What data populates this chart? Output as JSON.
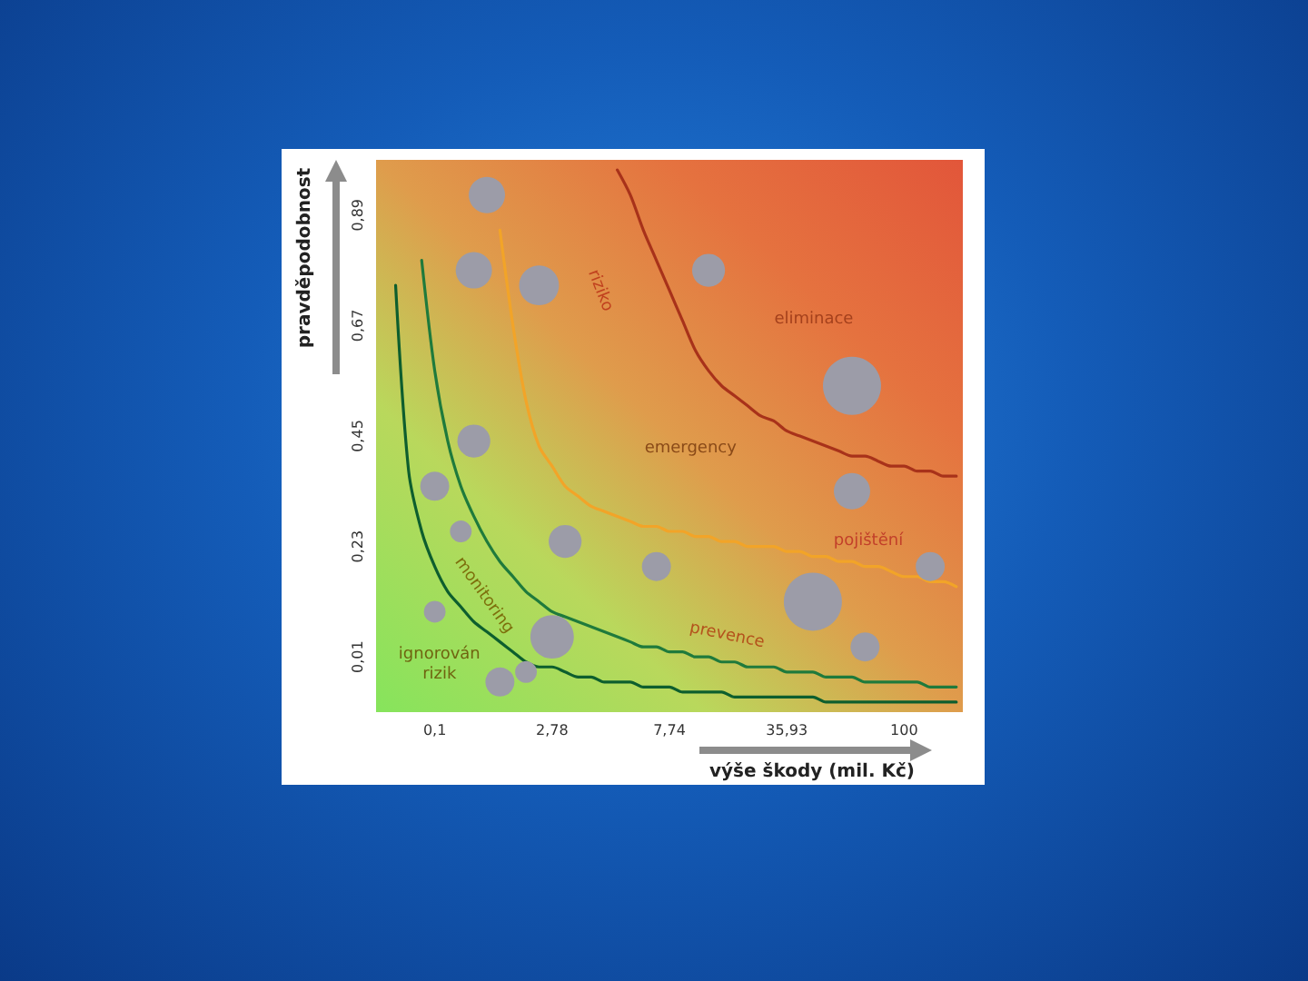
{
  "chart_data": {
    "type": "bubble",
    "xlabel": "výše škody (mil. Kč)",
    "ylabel": "pravděpodobnost",
    "categories": [
      null,
      null,
      null,
      null,
      "0,1",
      null,
      null,
      null,
      null,
      null,
      null,
      null,
      null,
      "2,78",
      null,
      null,
      null,
      null,
      null,
      null,
      null,
      null,
      "7,74",
      null,
      null,
      null,
      null,
      null,
      null,
      null,
      null,
      "35,93",
      null,
      null,
      null,
      null,
      null,
      null,
      null,
      null,
      "100",
      null,
      null,
      null,
      null
    ],
    "ylim": [
      -0.1,
      1.0
    ],
    "yticks": [
      {
        "value": 0.01,
        "label": "0,01"
      },
      {
        "value": 0.23,
        "label": "0,23"
      },
      {
        "value": 0.45,
        "label": "0,45"
      },
      {
        "value": 0.67,
        "label": "0,67"
      },
      {
        "value": 0.89,
        "label": "0,89"
      }
    ],
    "series": [
      {
        "type": "line",
        "color": "#0d5e2e",
        "marker": "none",
        "values": [
          null,
          0.75,
          0.38,
          0.26,
          0.19,
          0.14,
          0.11,
          0.08,
          0.06,
          0.04,
          0.02,
          0.0,
          -0.01,
          -0.01,
          -0.02,
          -0.03,
          -0.03,
          -0.04,
          -0.04,
          -0.04,
          -0.05,
          -0.05,
          -0.05,
          -0.06,
          -0.06,
          -0.06,
          -0.06,
          -0.07,
          -0.07,
          -0.07,
          -0.07,
          -0.07,
          -0.07,
          -0.07,
          -0.08,
          -0.08,
          -0.08,
          -0.08,
          -0.08,
          -0.08,
          -0.08,
          -0.08,
          -0.08,
          -0.08,
          -0.08
        ]
      },
      {
        "type": "line",
        "color": "#1f7a3c",
        "marker": "none",
        "values": [
          null,
          null,
          null,
          0.8,
          0.58,
          0.44,
          0.35,
          0.29,
          0.24,
          0.2,
          0.17,
          0.14,
          0.12,
          0.1,
          0.09,
          0.08,
          0.07,
          0.06,
          0.05,
          0.04,
          0.03,
          0.03,
          0.02,
          0.02,
          0.01,
          0.01,
          0.0,
          0.0,
          -0.01,
          -0.01,
          -0.01,
          -0.02,
          -0.02,
          -0.02,
          -0.03,
          -0.03,
          -0.03,
          -0.04,
          -0.04,
          -0.04,
          -0.04,
          -0.04,
          -0.05,
          -0.05,
          -0.05
        ]
      },
      {
        "type": "line",
        "color": "#f2a428",
        "marker": "none",
        "values": [
          null,
          null,
          null,
          null,
          null,
          null,
          null,
          null,
          null,
          0.86,
          0.67,
          0.52,
          0.43,
          0.39,
          0.35,
          0.33,
          0.31,
          0.3,
          0.29,
          0.28,
          0.27,
          0.27,
          0.26,
          0.26,
          0.25,
          0.25,
          0.24,
          0.24,
          0.23,
          0.23,
          0.23,
          0.22,
          0.22,
          0.21,
          0.21,
          0.2,
          0.2,
          0.19,
          0.19,
          0.18,
          0.17,
          0.17,
          0.16,
          0.16,
          0.15
        ]
      },
      {
        "type": "line",
        "color": "#a8321a",
        "marker": "none",
        "values": [
          null,
          null,
          null,
          null,
          null,
          null,
          null,
          null,
          null,
          null,
          null,
          null,
          null,
          null,
          null,
          null,
          null,
          null,
          0.98,
          0.93,
          0.86,
          0.8,
          0.74,
          0.68,
          0.62,
          0.58,
          0.55,
          0.53,
          0.51,
          0.49,
          0.48,
          0.46,
          0.45,
          0.44,
          0.43,
          0.42,
          0.41,
          0.41,
          0.4,
          0.39,
          0.39,
          0.38,
          0.38,
          0.37,
          0.37
        ]
      },
      {
        "color": "#9c9ca8",
        "marker": "circle",
        "values": [
          null,
          null,
          null,
          null,
          0.35,
          null,
          0.26,
          0.78,
          0.93,
          -0.04,
          null,
          -0.02,
          0.75,
          0.05,
          0.24,
          null,
          null,
          null,
          null,
          null,
          null,
          0.19,
          null,
          null,
          null,
          0.78,
          null,
          null,
          null,
          null,
          null,
          null,
          null,
          0.12,
          null,
          null,
          0.55,
          0.03,
          null,
          null,
          null,
          null,
          0.19,
          null,
          null
        ],
        "sizes": [
          null,
          null,
          null,
          null,
          0.25,
          null,
          0.14,
          0.39,
          0.39,
          0.25,
          null,
          0.14,
          0.47,
          0.56,
          0.32,
          null,
          null,
          null,
          null,
          null,
          null,
          0.25,
          null,
          null,
          null,
          0.32,
          null,
          null,
          null,
          null,
          null,
          null,
          null,
          1,
          null,
          null,
          1,
          0.25,
          null,
          null,
          null,
          null,
          0.25,
          null,
          null
        ]
      },
      {
        "color": "#9c9ca8",
        "marker": "circle",
        "values": [
          null,
          null,
          null,
          null,
          0.1,
          null,
          null,
          0.44,
          null,
          null,
          null,
          null,
          null,
          null,
          null,
          null,
          null,
          null,
          null,
          null,
          null,
          null,
          null,
          null,
          null,
          null,
          null,
          null,
          null,
          null,
          null,
          null,
          null,
          null,
          null,
          null,
          0.34,
          null,
          null,
          null,
          null,
          null,
          null,
          null,
          null
        ],
        "sizes": [
          null,
          null,
          null,
          null,
          0.14,
          null,
          null,
          0.32,
          null,
          null,
          null,
          null,
          null,
          null,
          null,
          null,
          null,
          null,
          null,
          null,
          null,
          null,
          null,
          null,
          null,
          null,
          null,
          null,
          null,
          null,
          null,
          null,
          null,
          null,
          null,
          null,
          0.39,
          null,
          null,
          null,
          null,
          null,
          null,
          null,
          null
        ]
      }
    ],
    "annotations": [
      "ignorován\nrizik",
      "monitoring",
      "prevence",
      "emergency",
      "eliminace",
      "riziko",
      "pojištění"
    ]
  }
}
